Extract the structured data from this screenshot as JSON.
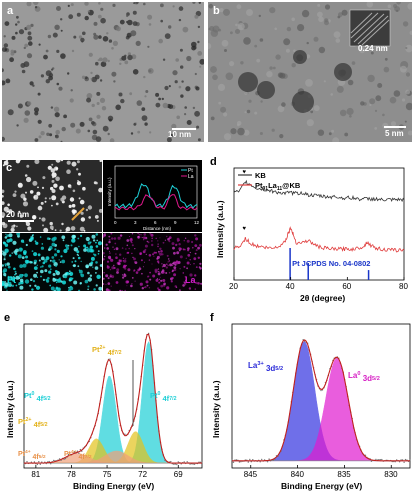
{
  "panels": {
    "a": {
      "label": "a",
      "scale_bar": "10 nm"
    },
    "b": {
      "label": "b",
      "scale_bar": "5 nm",
      "lattice": "0.24 nm"
    },
    "c": {
      "label": "c",
      "scale_bar": "20 nm",
      "map_labels": {
        "pt": "Pt",
        "la": "La"
      },
      "inset": {
        "xlabel": "Distance (nm)",
        "ylabel": "Intensity (a.u.)",
        "legend": [
          "Pt",
          "La"
        ],
        "xticks": [
          "0",
          "3",
          "6",
          "9",
          "12"
        ]
      }
    },
    "d": {
      "label": "d"
    },
    "e": {
      "label": "e"
    },
    "f": {
      "label": "f"
    }
  },
  "colors": {
    "pt": "#1ecfd6",
    "la": "#e0188c",
    "pt_map": "#16d4d4",
    "la_map": "#c21bb5"
  },
  "chart_data": [
    {
      "id": "xrd",
      "type": "line",
      "xlabel": "2θ (degree)",
      "ylabel": "Intensity (a.u.)",
      "xlim": [
        20,
        80
      ],
      "xticks": [
        20,
        40,
        60,
        80
      ],
      "legend_placement": "top-left",
      "series": [
        {
          "name": "KB",
          "color": "#333333",
          "x": [
            20,
            22,
            24,
            26,
            28,
            30,
            32,
            34,
            36,
            38,
            40,
            42,
            44,
            46,
            48,
            50,
            52,
            54,
            56,
            58,
            60,
            62,
            64,
            66,
            68,
            70,
            72,
            74,
            76,
            78,
            80
          ],
          "y": [
            10.2,
            10.3,
            11.2,
            10.9,
            10.6,
            10.5,
            10.4,
            10.3,
            10.2,
            10.1,
            10.2,
            10.1,
            10.2,
            10.0,
            9.9,
            9.9,
            9.8,
            9.8,
            9.8,
            9.7,
            9.7,
            9.7,
            9.6,
            9.6,
            9.6,
            9.6,
            9.5,
            9.5,
            9.5,
            9.5,
            9.5
          ]
        },
        {
          "name": "Pt<sub>91</sub>La<sub>11</sub>@KB",
          "legend_text": "Pt91La11@KB",
          "color": "#e03c3c",
          "x": [
            20,
            22,
            24,
            26,
            28,
            30,
            32,
            34,
            36,
            38,
            39,
            40,
            41,
            42,
            44,
            46,
            48,
            50,
            52,
            54,
            56,
            58,
            60,
            62,
            64,
            66,
            67,
            68,
            70,
            72,
            74,
            76,
            78,
            80
          ],
          "y": [
            5.0,
            5.1,
            5.9,
            5.4,
            5.2,
            5.1,
            5.0,
            5.0,
            5.2,
            5.6,
            6.3,
            6.9,
            6.2,
            5.5,
            5.5,
            5.7,
            5.4,
            5.1,
            5.0,
            4.9,
            4.9,
            4.9,
            4.9,
            4.9,
            5.0,
            5.2,
            5.6,
            5.3,
            5.0,
            4.9,
            4.8,
            4.8,
            4.8,
            4.8
          ]
        }
      ],
      "markers": [
        {
          "x": 24,
          "series": "KB",
          "symbol": "♥"
        },
        {
          "x": 24,
          "series": "Pt91La11@KB",
          "symbol": "♥"
        }
      ],
      "reference": {
        "name": "Pt JCPDS No. 04-0802",
        "color": "#1a36c9",
        "x": [
          39.8,
          46.2,
          67.5,
          81.3
        ],
        "intensity": [
          100,
          53,
          31,
          33
        ]
      }
    },
    {
      "id": "xps_pt",
      "type": "line",
      "xlabel": "Binding Energy (eV)",
      "ylabel": "Intensity (a.u.)",
      "xlim": [
        82,
        67
      ],
      "xticks": [
        81,
        78,
        75,
        72,
        69
      ],
      "annotations": [
        {
          "text": "Pt⁰ 4f5/2",
          "x": 75.5,
          "color": "#1ecfd6"
        },
        {
          "text": "Pt²⁺ 4f7/2",
          "x": 73.1,
          "color": "#e3b21b"
        },
        {
          "text": "Pt⁰ 4f7/2",
          "x": 71.2,
          "color": "#1ecfd6"
        },
        {
          "text": "Pt²⁺ 4f5/2",
          "x": 76.6,
          "color": "#e3b21b"
        },
        {
          "text": "Pt⁴⁺ 4f5/2",
          "x": 78.6,
          "color": "#e8924a"
        },
        {
          "text": "Pt⁴⁺ 4f7/2",
          "x": 77.2,
          "color": "#e8924a"
        }
      ],
      "components": [
        {
          "name": "Pt0 4f7/2",
          "center": 71.5,
          "height": 100,
          "width": 0.75,
          "color": "#1ecfd6"
        },
        {
          "name": "Pt0 4f5/2",
          "center": 74.8,
          "height": 72,
          "width": 0.8,
          "color": "#1ecfd6"
        },
        {
          "name": "Pt2+ 4f7/2",
          "center": 72.6,
          "height": 26,
          "width": 0.9,
          "color": "#e3c21b"
        },
        {
          "name": "Pt2+ 4f5/2",
          "center": 75.9,
          "height": 20,
          "width": 0.9,
          "color": "#e3c21b"
        },
        {
          "name": "Pt4+ 4f7/2",
          "center": 74.2,
          "height": 10,
          "width": 1.4,
          "color": "#f0a07a"
        },
        {
          "name": "Pt4+ 4f5/2",
          "center": 77.5,
          "height": 8,
          "width": 1.4,
          "color": "#f0a07a"
        }
      ],
      "background": 4
    },
    {
      "id": "xps_la",
      "type": "line",
      "xlabel": "Binding Energy (eV)",
      "ylabel": "Intensity (a.u.)",
      "xlim": [
        847,
        828
      ],
      "xticks": [
        845,
        840,
        835,
        830
      ],
      "annotations": [
        {
          "text": "La³⁺ 3d5/2",
          "x": 842.5,
          "color": "#2a2ad8"
        },
        {
          "text": "La⁰ 3d5/2",
          "x": 834.5,
          "color": "#d61fc4"
        }
      ],
      "components": [
        {
          "name": "La3+ 3d5/2",
          "center": 839.3,
          "height": 100,
          "width": 1.6,
          "color": "#3333e0"
        },
        {
          "name": "La0 3d5/2",
          "center": 835.8,
          "height": 86,
          "width": 1.7,
          "color": "#e01ad0"
        }
      ],
      "background": 6
    }
  ],
  "labels": {
    "d_legend_kb": "KB",
    "d_legend_pt": "Pt",
    "d_legend_pt_sub": "91",
    "d_legend_la": "La",
    "d_legend_la_sub": "11",
    "d_legend_tail": "@KB",
    "d_ref": "Pt JCPDS No. 04-0802",
    "e_pt0_52": "Pt",
    "e_pt0_52_sup": "0",
    "e_pt0_52_rest": " 4f",
    "e_pt0_52_sub": "5/2",
    "e_pt2_72": "Pt",
    "e_pt2_72_sup": "2+",
    "e_pt2_72_rest": " 4f",
    "e_pt2_72_sub": "7/2",
    "e_pt0_72": "Pt",
    "e_pt0_72_sup": "0",
    "e_pt0_72_rest": " 4f",
    "e_pt0_72_sub": "7/2",
    "e_pt2_52": "Pt",
    "e_pt2_52_sup": "2+",
    "e_pt2_52_rest": " 4f",
    "e_pt2_52_sub": "5/2",
    "e_pt4_52": "Pt",
    "e_pt4_52_sup": "4+",
    "e_pt4_52_rest": " 4f",
    "e_pt4_52_sub": "5/2",
    "e_pt4_72": "Pt",
    "e_pt4_72_sup": "4+",
    "e_pt4_72_rest": " 4f",
    "e_pt4_72_sub": "7/2",
    "f_la3": "La",
    "f_la3_sup": "3+",
    "f_la3_rest": " 3d",
    "f_la3_sub": "5/2",
    "f_la0": "La",
    "f_la0_sup": "0",
    "f_la0_rest": " 3d",
    "f_la0_sub": "5/2"
  }
}
